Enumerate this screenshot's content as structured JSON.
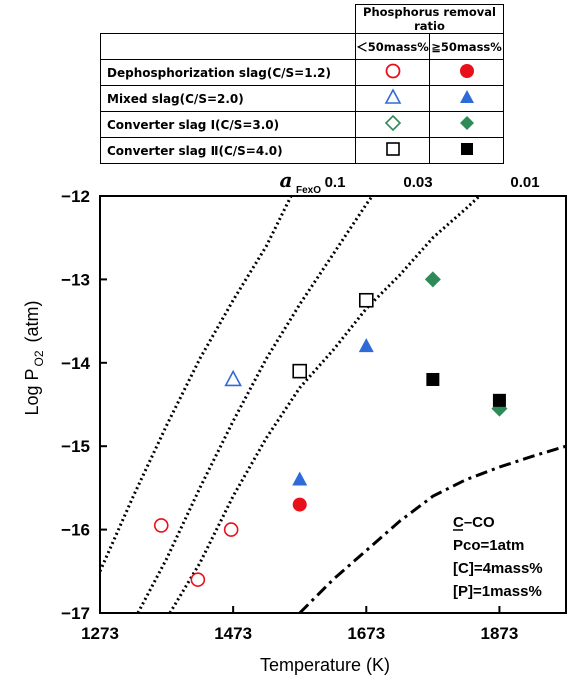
{
  "legend": {
    "header": "Phosphorus removal ratio",
    "col_low": "＜50mass%",
    "col_high": "≧50mass%",
    "rows": [
      {
        "label": "Dephosphorization slag(C/S=1.2)",
        "marker": "circle",
        "color": "#e8101a"
      },
      {
        "label": "Mixed slag(C/S=2.0)",
        "marker": "triangle",
        "color": "#2f6bd8"
      },
      {
        "label": "Converter slag Ⅰ(C/S=3.0)",
        "marker": "diamond",
        "color": "#2e8b57"
      },
      {
        "label": "Converter slag Ⅱ(C/S=4.0)",
        "marker": "square",
        "color": "#000000"
      }
    ]
  },
  "annotations": {
    "activity_symbol": "a",
    "activity_subscript": "FexO",
    "activity_levels": [
      "0.1",
      "0.03",
      "0.01"
    ],
    "equilibrium_line": "C–CO",
    "equilibrium_underline": "C",
    "conditions": [
      "Pco=1atm",
      "[C]=4mass%",
      "[P]=1mass%"
    ]
  },
  "chart_data": {
    "type": "scatter",
    "xlabel": "Temperature (K)",
    "ylabel_prefix": "Log P",
    "ylabel_subscript": "O2",
    "ylabel_unit": "(atm)",
    "xlim": [
      1273,
      1973
    ],
    "ylim": [
      -17,
      -12
    ],
    "xticks": [
      1273,
      1473,
      1673,
      1873
    ],
    "yticks": [
      -12,
      -13,
      -14,
      -15,
      -16,
      -17
    ],
    "series": [
      {
        "name": "Dephosphorization slag(C/S=1.2)",
        "marker": "circle",
        "color": "#e8101a",
        "low": [
          [
            1365,
            -15.95
          ],
          [
            1470,
            -16.0
          ],
          [
            1420,
            -16.6
          ]
        ],
        "high": [
          [
            1573,
            -15.7
          ]
        ]
      },
      {
        "name": "Mixed slag(C/S=2.0)",
        "marker": "triangle",
        "color": "#2f6bd8",
        "low": [
          [
            1473,
            -14.2
          ]
        ],
        "high": [
          [
            1573,
            -15.4
          ],
          [
            1673,
            -13.8
          ]
        ]
      },
      {
        "name": "Converter slag Ⅰ(C/S=3.0)",
        "marker": "diamond",
        "color": "#2e8b57",
        "low": [],
        "high": [
          [
            1773,
            -13.0
          ],
          [
            1873,
            -14.55
          ]
        ]
      },
      {
        "name": "Converter slag Ⅱ(C/S=4.0)",
        "marker": "square",
        "color": "#000000",
        "low": [
          [
            1573,
            -14.1
          ],
          [
            1673,
            -13.25
          ]
        ],
        "high": [
          [
            1773,
            -14.2
          ],
          [
            1873,
            -14.45
          ]
        ]
      }
    ],
    "iso_activity_lines": [
      {
        "label": "0.1",
        "points": [
          [
            1273,
            -16.5
          ],
          [
            1323,
            -15.6
          ],
          [
            1373,
            -14.75
          ],
          [
            1423,
            -13.95
          ],
          [
            1473,
            -13.25
          ],
          [
            1523,
            -12.6
          ],
          [
            1560,
            -12.0
          ]
        ]
      },
      {
        "label": "0.03",
        "points": [
          [
            1330,
            -17.0
          ],
          [
            1373,
            -16.35
          ],
          [
            1423,
            -15.5
          ],
          [
            1473,
            -14.7
          ],
          [
            1523,
            -13.95
          ],
          [
            1573,
            -13.3
          ],
          [
            1623,
            -12.7
          ],
          [
            1673,
            -12.1
          ],
          [
            1682,
            -12.0
          ]
        ]
      },
      {
        "label": "0.01",
        "points": [
          [
            1378,
            -17.0
          ],
          [
            1423,
            -16.4
          ],
          [
            1473,
            -15.6
          ],
          [
            1523,
            -14.9
          ],
          [
            1573,
            -14.3
          ],
          [
            1623,
            -13.85
          ],
          [
            1673,
            -13.35
          ],
          [
            1723,
            -12.95
          ],
          [
            1773,
            -12.5
          ],
          [
            1823,
            -12.15
          ],
          [
            1843,
            -12.0
          ]
        ]
      }
    ],
    "c_co_line": {
      "label": "C–CO",
      "points": [
        [
          1573,
          -17.0
        ],
        [
          1623,
          -16.6
        ],
        [
          1673,
          -16.25
        ],
        [
          1723,
          -15.9
        ],
        [
          1773,
          -15.6
        ],
        [
          1823,
          -15.4
        ],
        [
          1873,
          -15.25
        ],
        [
          1923,
          -15.12
        ],
        [
          1973,
          -15.0
        ]
      ]
    }
  }
}
